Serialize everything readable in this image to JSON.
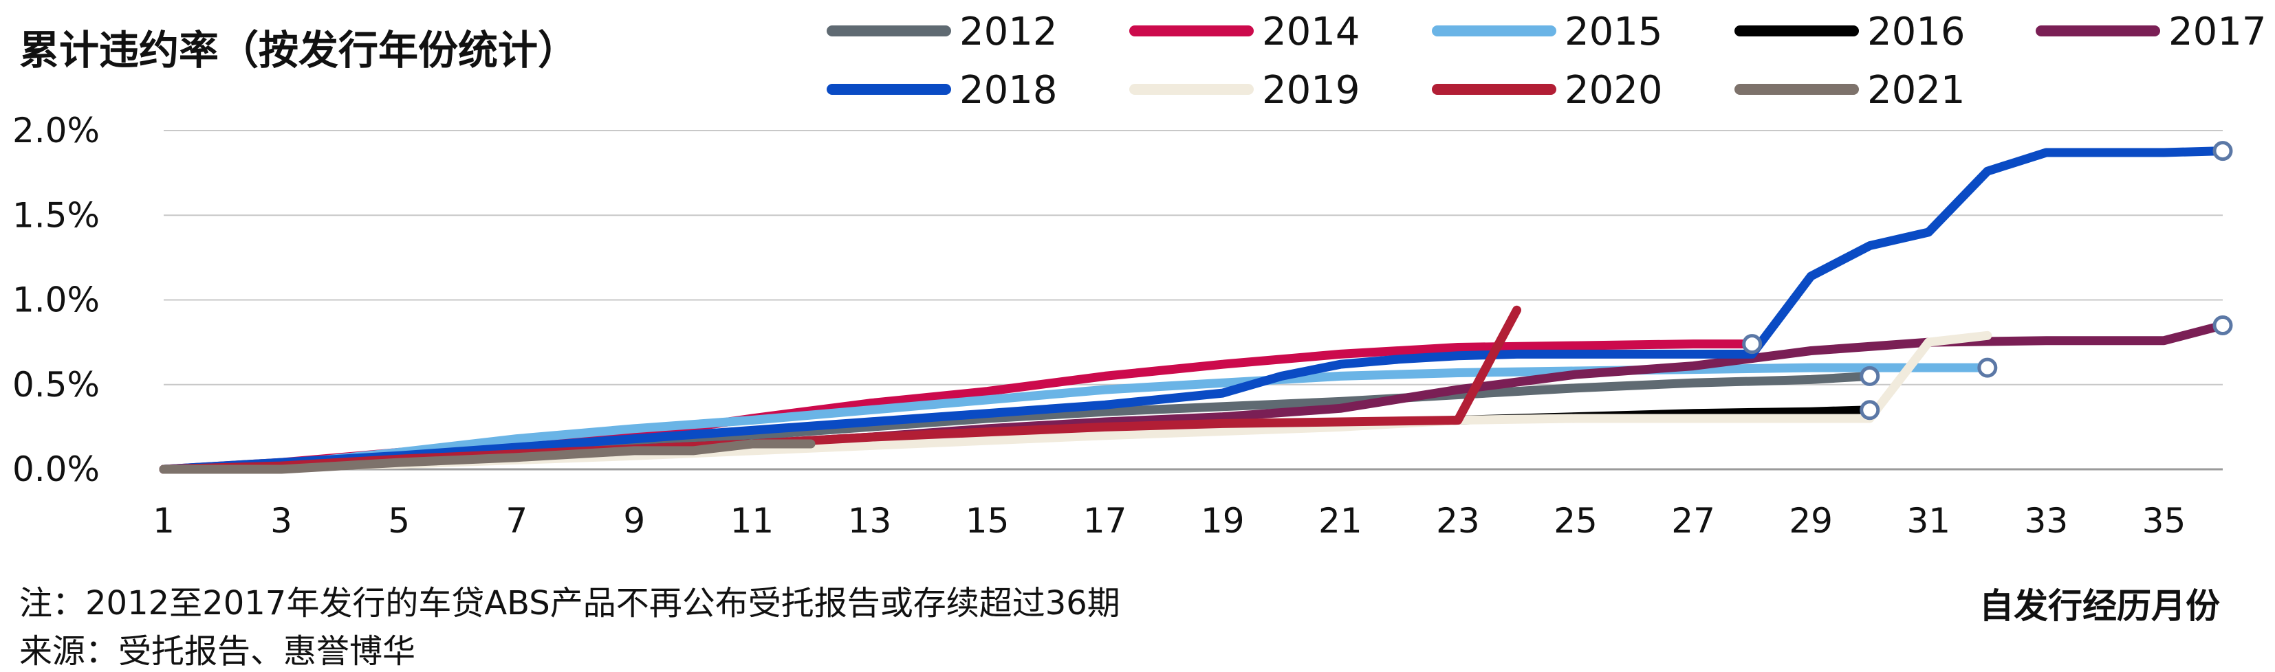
{
  "chart_data": {
    "type": "line",
    "title": "累计违约率（按发行年份统计）",
    "xlabel": "自发行经历月份",
    "ylabel": "",
    "xlim": [
      1,
      36
    ],
    "ylim": [
      0,
      2.0
    ],
    "ytick_labels": [
      "0.0%",
      "0.5%",
      "1.0%",
      "1.5%",
      "2.0%"
    ],
    "xtick_labels": [
      "1",
      "3",
      "5",
      "7",
      "9",
      "11",
      "13",
      "15",
      "17",
      "19",
      "21",
      "23",
      "25",
      "27",
      "29",
      "31",
      "33",
      "35"
    ],
    "grid": "horizontal",
    "legend_position": "top",
    "series": [
      {
        "name": "2012",
        "color": "#5f6a72",
        "end_marker": true,
        "x": [
          1,
          3,
          5,
          7,
          9,
          11,
          13,
          15,
          17,
          19,
          21,
          23,
          25,
          27,
          29,
          30
        ],
        "y": [
          0.0,
          0.01,
          0.05,
          0.1,
          0.16,
          0.2,
          0.25,
          0.3,
          0.34,
          0.37,
          0.4,
          0.44,
          0.48,
          0.51,
          0.53,
          0.55
        ]
      },
      {
        "name": "2014",
        "color": "#cc0a4c",
        "end_marker": true,
        "x": [
          1,
          3,
          5,
          7,
          9,
          11,
          13,
          15,
          17,
          19,
          21,
          23,
          25,
          27,
          28
        ],
        "y": [
          0.0,
          0.04,
          0.1,
          0.15,
          0.2,
          0.3,
          0.39,
          0.46,
          0.55,
          0.62,
          0.68,
          0.72,
          0.73,
          0.74,
          0.74
        ]
      },
      {
        "name": "2015",
        "color": "#6ab4e6",
        "end_marker": true,
        "x": [
          1,
          3,
          5,
          7,
          9,
          11,
          13,
          15,
          17,
          19,
          21,
          23,
          25,
          27,
          29,
          31,
          32
        ],
        "y": [
          0.0,
          0.03,
          0.1,
          0.18,
          0.24,
          0.29,
          0.35,
          0.41,
          0.47,
          0.51,
          0.55,
          0.57,
          0.58,
          0.59,
          0.6,
          0.6,
          0.6
        ]
      },
      {
        "name": "2016",
        "color": "#000000",
        "end_marker": true,
        "x": [
          1,
          3,
          5,
          7,
          9,
          11,
          13,
          15,
          17,
          19,
          21,
          23,
          25,
          27,
          29,
          30
        ],
        "y": [
          0.0,
          0.01,
          0.05,
          0.08,
          0.11,
          0.15,
          0.17,
          0.19,
          0.21,
          0.24,
          0.26,
          0.29,
          0.31,
          0.33,
          0.34,
          0.35
        ]
      },
      {
        "name": "2017",
        "color": "#7a1f55",
        "end_marker": true,
        "x": [
          1,
          3,
          5,
          7,
          9,
          11,
          13,
          15,
          17,
          19,
          21,
          23,
          25,
          27,
          29,
          31,
          33,
          35,
          36
        ],
        "y": [
          0.0,
          0.01,
          0.05,
          0.08,
          0.12,
          0.15,
          0.19,
          0.24,
          0.28,
          0.31,
          0.36,
          0.47,
          0.56,
          0.61,
          0.7,
          0.75,
          0.76,
          0.76,
          0.85
        ]
      },
      {
        "name": "2018",
        "color": "#0a4bc4",
        "end_marker": true,
        "x": [
          1,
          3,
          5,
          7,
          9,
          11,
          13,
          15,
          17,
          19,
          20,
          21,
          22,
          23,
          24,
          25,
          26,
          27,
          28,
          29,
          30,
          31,
          32,
          33,
          34,
          35,
          36
        ],
        "y": [
          0.0,
          0.04,
          0.08,
          0.13,
          0.18,
          0.23,
          0.28,
          0.33,
          0.38,
          0.45,
          0.55,
          0.62,
          0.65,
          0.67,
          0.68,
          0.68,
          0.68,
          0.68,
          0.68,
          1.14,
          1.32,
          1.4,
          1.76,
          1.87,
          1.87,
          1.87,
          1.88
        ]
      },
      {
        "name": "2019",
        "color": "#f1ebdd",
        "end_marker": false,
        "x": [
          1,
          5,
          9,
          13,
          17,
          21,
          23,
          25,
          27,
          29,
          30,
          31,
          32
        ],
        "y": [
          0.0,
          0.03,
          0.08,
          0.14,
          0.2,
          0.25,
          0.29,
          0.3,
          0.3,
          0.3,
          0.3,
          0.75,
          0.79
        ]
      },
      {
        "name": "2020",
        "color": "#b21e35",
        "end_marker": false,
        "x": [
          1,
          3,
          5,
          7,
          9,
          11,
          13,
          15,
          17,
          19,
          21,
          23,
          24
        ],
        "y": [
          0.0,
          0.02,
          0.06,
          0.09,
          0.12,
          0.15,
          0.19,
          0.22,
          0.25,
          0.27,
          0.28,
          0.29,
          0.94
        ]
      },
      {
        "name": "2021",
        "color": "#7d726b",
        "end_marker": false,
        "x": [
          1,
          3,
          5,
          7,
          9,
          10,
          11,
          12
        ],
        "y": [
          0.0,
          0.0,
          0.04,
          0.07,
          0.11,
          0.11,
          0.15,
          0.15
        ]
      }
    ]
  },
  "notes": {
    "line1": "注：2012至2017年发行的车贷ABS产品不再公布受托报告或存续超过36期",
    "line2": "来源：受托报告、惠誉博华"
  }
}
